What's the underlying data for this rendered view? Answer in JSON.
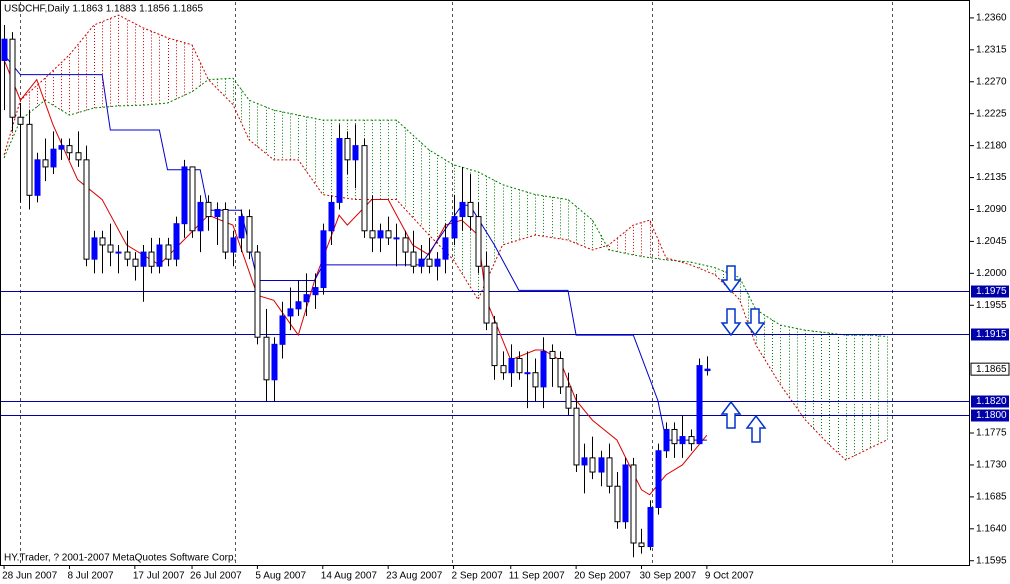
{
  "chart_data": {
    "type": "candlestick",
    "title": "USDCHF,Daily  1.1863 1.1883 1.1856 1.1865",
    "footer": "HY.Trader, ? 2001-2007 MetaQuotes Software Corp.",
    "xlim": [
      -0.5,
      118.2
    ],
    "ylim": [
      1.1589,
      1.2381
    ],
    "xticks": [
      {
        "value": 0,
        "label": "28 Jun 2007"
      },
      {
        "value": 8,
        "label": "8 Jul 2007"
      },
      {
        "value": 16,
        "label": "17 Jul 2007"
      },
      {
        "value": 23,
        "label": "26 Jul 2007"
      },
      {
        "value": 31,
        "label": "5 Aug 2007"
      },
      {
        "value": 39,
        "label": "14 Aug 2007"
      },
      {
        "value": 47,
        "label": "23 Aug 2007"
      },
      {
        "value": 55,
        "label": "2 Sep 2007"
      },
      {
        "value": 62,
        "label": "11 Sep 2007"
      },
      {
        "value": 70,
        "label": "20 Sep 2007"
      },
      {
        "value": 78,
        "label": "30 Sep 2007"
      },
      {
        "value": 86,
        "label": "9 Oct 2007"
      }
    ],
    "yticks": [
      {
        "value": 1.236,
        "label": "1.2360"
      },
      {
        "value": 1.2315,
        "label": "1.2315"
      },
      {
        "value": 1.227,
        "label": "1.2270"
      },
      {
        "value": 1.2225,
        "label": "1.2225"
      },
      {
        "value": 1.218,
        "label": "1.2180"
      },
      {
        "value": 1.2135,
        "label": "1.2135"
      },
      {
        "value": 1.209,
        "label": "1.2090"
      },
      {
        "value": 1.2045,
        "label": "1.2045"
      },
      {
        "value": 1.2,
        "label": "1.2000"
      },
      {
        "value": 1.1955,
        "label": "1.1955"
      },
      {
        "value": 1.1775,
        "label": "1.1775"
      },
      {
        "value": 1.173,
        "label": "1.1730"
      },
      {
        "value": 1.1685,
        "label": "1.1685"
      },
      {
        "value": 1.164,
        "label": "1.1640"
      },
      {
        "value": 1.1595,
        "label": "1.1595"
      }
    ],
    "open": [
      1.23,
      1.233,
      1.222,
      1.221,
      1.211,
      1.216,
      1.215,
      1.2175,
      1.218,
      1.217,
      1.216,
      1.202,
      1.205,
      1.204,
      1.203,
      1.203,
      1.202,
      1.201,
      1.203,
      1.201,
      1.204,
      1.202,
      1.207,
      1.215,
      1.206,
      1.21,
      1.208,
      1.209,
      1.203,
      1.205,
      1.208,
      1.203,
      1.191,
      1.185,
      1.19,
      1.194,
      1.195,
      1.196,
      1.197,
      1.198,
      1.206,
      1.21,
      1.219,
      1.216,
      1.218,
      1.206,
      1.205,
      1.206,
      1.205,
      1.205,
      1.203,
      1.201,
      1.202,
      1.201,
      1.202,
      1.205,
      1.208,
      1.21,
      1.208,
      1.201,
      1.193,
      1.187,
      1.186,
      1.188,
      1.186,
      1.186,
      1.184,
      1.189,
      1.188,
      1.184,
      1.181,
      1.173,
      1.174,
      1.172,
      1.174,
      1.17,
      1.165,
      1.173,
      1.162,
      1.1615,
      1.167,
      1.175,
      1.178,
      1.176,
      1.177,
      1.176,
      1.1863
    ],
    "high": [
      1.235,
      1.234,
      1.224,
      1.223,
      1.217,
      1.219,
      1.22,
      1.219,
      1.219,
      1.22,
      1.218,
      1.206,
      1.206,
      1.207,
      1.204,
      1.206,
      1.203,
      1.204,
      1.205,
      1.205,
      1.205,
      1.208,
      1.216,
      1.215,
      1.211,
      1.211,
      1.21,
      1.21,
      1.206,
      1.209,
      1.209,
      1.204,
      1.195,
      1.191,
      1.196,
      1.198,
      1.199,
      1.2,
      1.2,
      1.207,
      1.211,
      1.221,
      1.22,
      1.221,
      1.219,
      1.211,
      1.207,
      1.208,
      1.207,
      1.206,
      1.206,
      1.204,
      1.205,
      1.203,
      1.207,
      1.211,
      1.215,
      1.214,
      1.21,
      1.203,
      1.194,
      1.189,
      1.19,
      1.189,
      1.189,
      1.188,
      1.191,
      1.19,
      1.189,
      1.186,
      1.183,
      1.176,
      1.177,
      1.175,
      1.176,
      1.172,
      1.174,
      1.174,
      1.164,
      1.168,
      1.176,
      1.179,
      1.179,
      1.18,
      1.178,
      1.188,
      1.1883
    ],
    "low": [
      1.223,
      1.22,
      1.21,
      1.209,
      1.21,
      1.213,
      1.214,
      1.216,
      1.216,
      1.215,
      1.201,
      1.2,
      1.2,
      1.201,
      1.2,
      1.201,
      1.199,
      1.196,
      1.2,
      1.2,
      1.201,
      1.201,
      1.205,
      1.205,
      1.203,
      1.206,
      1.204,
      1.202,
      1.201,
      1.203,
      1.202,
      1.19,
      1.182,
      1.182,
      1.188,
      1.192,
      1.194,
      1.194,
      1.195,
      1.197,
      1.204,
      1.209,
      1.214,
      1.212,
      1.205,
      1.203,
      1.203,
      1.204,
      1.201,
      1.201,
      1.2,
      1.2,
      1.2,
      1.199,
      1.2,
      1.204,
      1.206,
      1.206,
      1.2,
      1.192,
      1.185,
      1.185,
      1.184,
      1.185,
      1.181,
      1.182,
      1.181,
      1.184,
      1.183,
      1.18,
      1.172,
      1.169,
      1.171,
      1.17,
      1.169,
      1.164,
      1.164,
      1.16,
      1.1605,
      1.161,
      1.166,
      1.174,
      1.174,
      1.174,
      1.175,
      1.176,
      1.1856
    ],
    "close": [
      1.233,
      1.222,
      1.221,
      1.211,
      1.216,
      1.215,
      1.2175,
      1.218,
      1.217,
      1.216,
      1.202,
      1.205,
      1.204,
      1.203,
      1.203,
      1.202,
      1.201,
      1.203,
      1.201,
      1.204,
      1.202,
      1.207,
      1.215,
      1.206,
      1.21,
      1.208,
      1.209,
      1.203,
      1.205,
      1.208,
      1.203,
      1.191,
      1.185,
      1.19,
      1.194,
      1.195,
      1.196,
      1.197,
      1.198,
      1.206,
      1.21,
      1.219,
      1.216,
      1.218,
      1.206,
      1.205,
      1.206,
      1.205,
      1.205,
      1.203,
      1.201,
      1.202,
      1.201,
      1.202,
      1.205,
      1.208,
      1.21,
      1.208,
      1.201,
      1.193,
      1.187,
      1.186,
      1.188,
      1.186,
      1.186,
      1.184,
      1.189,
      1.188,
      1.184,
      1.181,
      1.173,
      1.174,
      1.172,
      1.174,
      1.17,
      1.165,
      1.173,
      1.162,
      1.1615,
      1.167,
      1.175,
      1.178,
      1.176,
      1.177,
      1.176,
      1.187,
      1.1865
    ],
    "colors": {
      "up": "#0000ff",
      "down": "#ffffff",
      "wick": "#000000"
    },
    "lines": [
      {
        "color": "#dd0000",
        "x": [
          0,
          2,
          4,
          6,
          9,
          12,
          15,
          19,
          22,
          25,
          28,
          31,
          33,
          36,
          38,
          41,
          42,
          45,
          47,
          50,
          52,
          54,
          56,
          58,
          59,
          62,
          65,
          66,
          68,
          70,
          72,
          75,
          78,
          79,
          81,
          83,
          86
        ],
        "values": [
          1.2301,
          1.2244,
          1.2273,
          1.2209,
          1.2132,
          1.2104,
          1.204,
          1.2012,
          1.2047,
          1.2082,
          1.2068,
          1.1969,
          1.1962,
          1.1913,
          1.199,
          1.2082,
          1.2068,
          1.2104,
          1.2104,
          1.204,
          1.2026,
          1.2068,
          1.2075,
          1.2054,
          1.1963,
          1.1878,
          1.1892,
          1.1892,
          1.1878,
          1.1821,
          1.1793,
          1.1765,
          1.1695,
          1.1688,
          1.1716,
          1.173,
          1.1772
        ]
      },
      {
        "color": "#0000cc",
        "x": [
          0,
          2,
          12,
          13,
          19,
          20,
          24,
          25,
          29,
          31,
          38,
          39,
          51,
          56,
          57,
          60,
          63,
          69,
          70,
          77,
          80,
          81,
          86
        ],
        "values": [
          1.2308,
          1.228,
          1.228,
          1.2202,
          1.2202,
          1.2146,
          1.2146,
          1.2089,
          1.2089,
          1.199,
          1.199,
          1.2012,
          1.2012,
          1.2096,
          1.2096,
          1.204,
          1.1976,
          1.1976,
          1.1913,
          1.1913,
          1.1821,
          1.1765,
          1.1765
        ]
      }
    ],
    "cloud": {
      "x": [
        0,
        2,
        5,
        8,
        11,
        14,
        17,
        20,
        23,
        25,
        28,
        30,
        33,
        36,
        39,
        43,
        48,
        52,
        55,
        58,
        61,
        65,
        69,
        72,
        74,
        77,
        79,
        81,
        84,
        87,
        90,
        92,
        95,
        98,
        101,
        103,
        106,
        108
      ],
      "span_a": [
        1.2163,
        1.2216,
        1.2244,
        1.2223,
        1.2233,
        1.2236,
        1.2237,
        1.224,
        1.2256,
        1.2273,
        1.2275,
        1.2244,
        1.223,
        1.2223,
        1.2216,
        1.2216,
        1.2216,
        1.2174,
        1.2153,
        1.2143,
        1.2125,
        1.2111,
        1.2104,
        1.2075,
        1.2033,
        1.2026,
        1.2022,
        1.2019,
        1.2016,
        1.2008,
        1.1994,
        1.1949,
        1.1927,
        1.192,
        1.1916,
        1.1913,
        1.1913,
        1.1911
      ],
      "span_b": [
        1.2167,
        1.2244,
        1.2275,
        1.2308,
        1.235,
        1.2364,
        1.2346,
        1.2332,
        1.2322,
        1.2273,
        1.2238,
        1.2188,
        1.216,
        1.216,
        1.2111,
        1.2104,
        1.2104,
        1.2054,
        1.2019,
        1.1963,
        1.204,
        1.2054,
        1.2047,
        1.2033,
        1.204,
        1.2068,
        1.2075,
        1.2022,
        1.2012,
        1.1998,
        1.1963,
        1.1899,
        1.1843,
        1.1794,
        1.1758,
        1.1737,
        1.1754,
        1.1765
      ],
      "up_color": "#008000",
      "down_color": "#cc0000"
    },
    "levels": [
      {
        "value": 1.1975,
        "label": "1.1975"
      },
      {
        "value": 1.1915,
        "label": "1.1915"
      },
      {
        "value": 1.182,
        "label": "1.1820"
      },
      {
        "value": 1.18,
        "label": "1.1800"
      }
    ],
    "level_color": "#0000aa",
    "current_price": {
      "value": 1.1865,
      "label": "1.1865"
    }
  }
}
